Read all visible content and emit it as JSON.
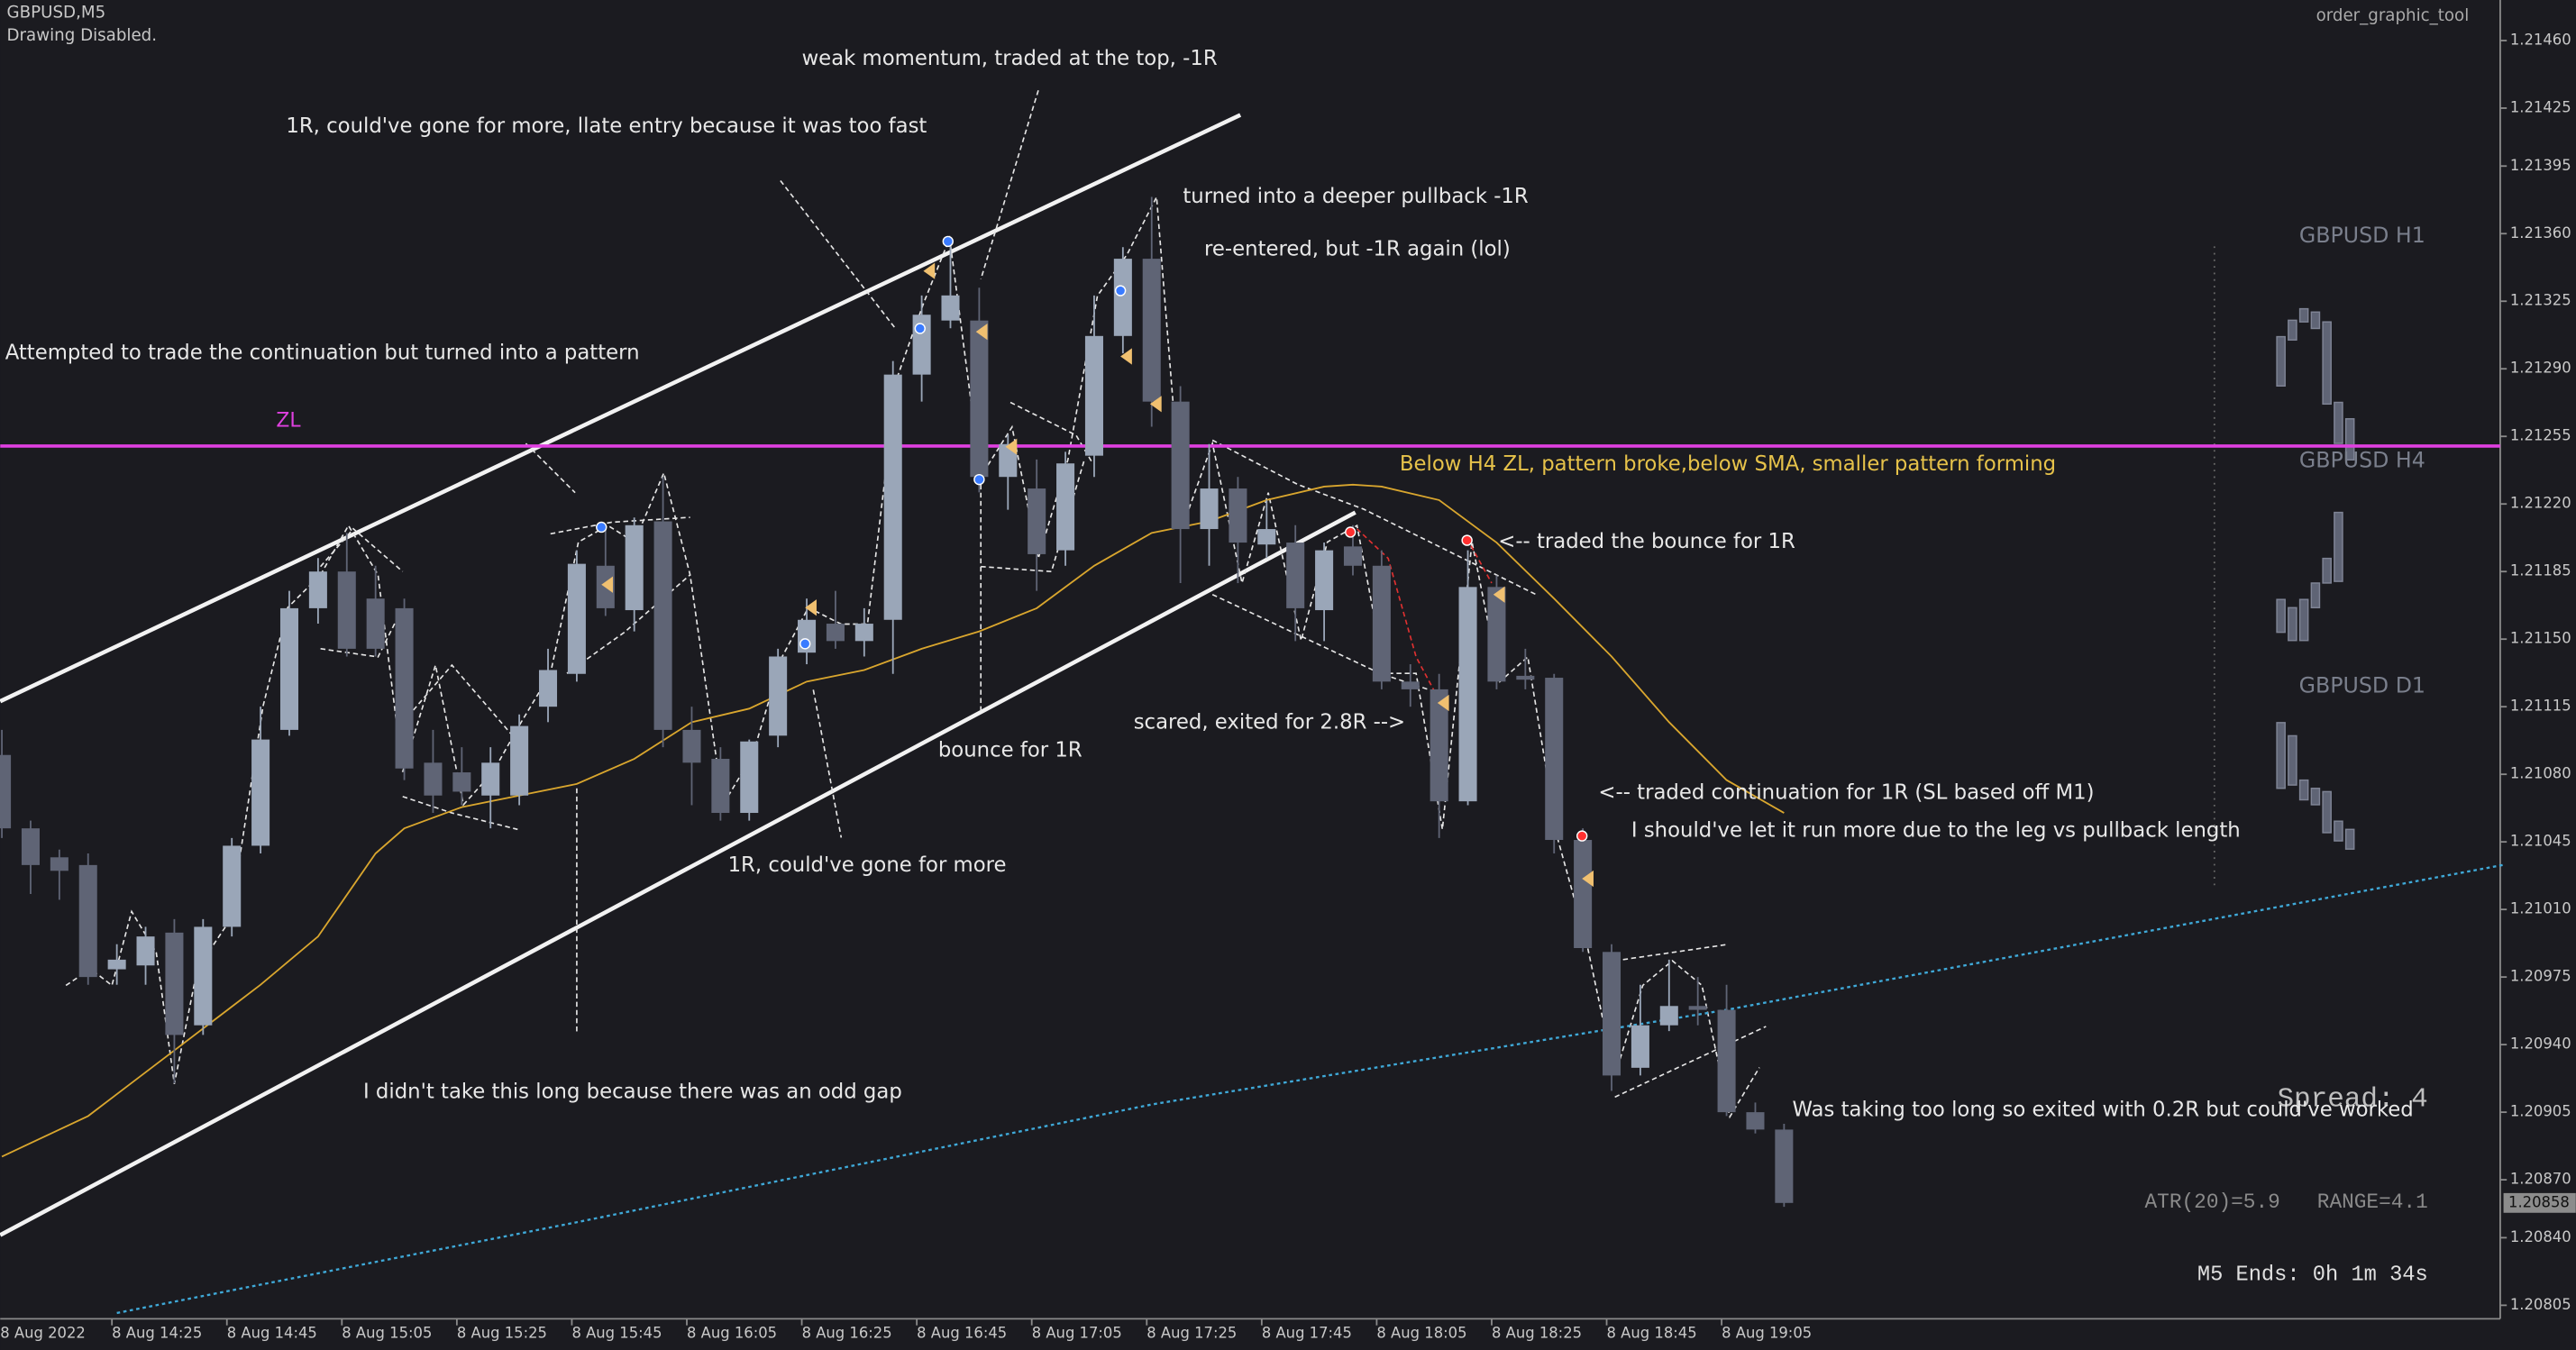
{
  "chart_data": {
    "type": "candlestick",
    "symbol": "GBPUSD,M5",
    "status": "Drawing Disabled.",
    "indicator": "order_graphic_tool",
    "categories": [
      "8 Aug 2022",
      null,
      null,
      null,
      "8 Aug 14:25",
      null,
      null,
      null,
      "8 Aug 14:45",
      null,
      null,
      null,
      "8 Aug 15:05",
      null,
      null,
      null,
      "8 Aug 15:25",
      null,
      null,
      null,
      "8 Aug 15:45",
      null,
      null,
      null,
      "8 Aug 16:05",
      null,
      null,
      null,
      "8 Aug 16:25",
      null,
      null,
      null,
      "8 Aug 16:45",
      null,
      null,
      null,
      "8 Aug 17:05",
      null,
      null,
      null,
      "8 Aug 17:25",
      null,
      null,
      null,
      "8 Aug 17:45",
      null,
      null,
      null,
      "8 Aug 18:05",
      null,
      null,
      null,
      "8 Aug 18:25",
      null,
      null,
      null,
      "8 Aug 18:45",
      null,
      null,
      null,
      "8 Aug 19:05",
      null,
      null
    ],
    "open": [
      1.2109,
      1.21052,
      1.21037,
      1.21033,
      1.20979,
      1.20981,
      1.20998,
      1.2095,
      1.21001,
      1.21043,
      1.21103,
      1.21166,
      1.21185,
      1.21171,
      1.21166,
      1.21086,
      1.21081,
      1.21069,
      1.21069,
      1.21115,
      1.21132,
      1.21188,
      1.21165,
      1.21211,
      1.21103,
      1.21088,
      1.2106,
      1.211,
      1.21143,
      1.21158,
      1.21149,
      1.2116,
      1.21287,
      1.21315,
      1.21315,
      1.21234,
      1.21228,
      1.21196,
      1.21245,
      1.21307,
      1.21347,
      1.21273,
      1.21207,
      1.21228,
      1.21199,
      1.212,
      1.21165,
      1.21198,
      1.21188,
      1.21128,
      1.21124,
      1.21066,
      1.21177,
      1.21131,
      1.2113,
      1.21046,
      1.20988,
      1.20928,
      1.2095,
      1.2096,
      1.20958,
      1.20905,
      1.20896
    ],
    "high": [
      1.21103,
      1.21056,
      1.21041,
      1.21039,
      1.20992,
      1.21001,
      1.21005,
      1.21005,
      1.21047,
      1.21115,
      1.21175,
      1.21192,
      1.21205,
      1.21188,
      1.21171,
      1.21103,
      1.21094,
      1.21094,
      1.21111,
      1.21145,
      1.21196,
      1.21209,
      1.21213,
      1.21234,
      1.21115,
      1.21094,
      1.21098,
      1.21145,
      1.21171,
      1.21175,
      1.21166,
      1.21294,
      1.21328,
      1.21358,
      1.21332,
      1.21256,
      1.21243,
      1.21247,
      1.21328,
      1.21353,
      1.21379,
      1.21281,
      1.21251,
      1.21234,
      1.21222,
      1.21209,
      1.212,
      1.21209,
      1.21196,
      1.21137,
      1.21132,
      1.21196,
      1.21183,
      1.21145,
      1.21132,
      1.21052,
      1.20992,
      1.20971,
      1.20984,
      1.20975,
      1.20971,
      1.2091,
      1.20899
    ],
    "low": [
      1.21047,
      1.21018,
      1.21015,
      1.20971,
      1.20971,
      1.20971,
      1.2092,
      1.20945,
      1.20996,
      1.21039,
      1.211,
      1.21158,
      1.21141,
      1.21141,
      1.21077,
      1.2106,
      1.21064,
      1.21052,
      1.21064,
      1.21107,
      1.21128,
      1.21162,
      1.21154,
      1.21094,
      1.21064,
      1.21056,
      1.21056,
      1.21094,
      1.21137,
      1.21145,
      1.21141,
      1.21132,
      1.21273,
      1.21311,
      1.21226,
      1.21217,
      1.21175,
      1.21188,
      1.21234,
      1.21298,
      1.2126,
      1.21179,
      1.21188,
      1.21179,
      1.21192,
      1.21149,
      1.21149,
      1.21183,
      1.21124,
      1.21115,
      1.21047,
      1.21064,
      1.21124,
      1.21124,
      1.21039,
      1.20988,
      1.20916,
      1.20924,
      1.20947,
      1.2095,
      1.20903,
      1.20894,
      1.20856
    ],
    "close": [
      1.21052,
      1.21033,
      1.2103,
      1.20975,
      1.20984,
      1.20996,
      1.20945,
      1.21001,
      1.21043,
      1.21098,
      1.21166,
      1.21185,
      1.21145,
      1.21145,
      1.21083,
      1.21069,
      1.21071,
      1.21086,
      1.21105,
      1.21134,
      1.21189,
      1.21166,
      1.21209,
      1.21103,
      1.21086,
      1.2106,
      1.21097,
      1.21141,
      1.2116,
      1.21149,
      1.21158,
      1.21287,
      1.21318,
      1.21328,
      1.21234,
      1.21251,
      1.21194,
      1.21241,
      1.21307,
      1.21347,
      1.21273,
      1.21207,
      1.21228,
      1.212,
      1.21207,
      1.21166,
      1.21196,
      1.21188,
      1.21128,
      1.21124,
      1.21066,
      1.21177,
      1.21128,
      1.21129,
      1.21046,
      1.2099,
      1.20924,
      1.2095,
      1.2096,
      1.20958,
      1.20905,
      1.20896,
      1.20858
    ],
    "up_color": "#9aa6b8",
    "down_color": "#5f6475",
    "sma": {
      "color": "#d9a62e",
      "x": [
        0,
        3,
        6,
        9,
        11,
        13,
        14,
        16,
        18,
        20,
        22,
        24,
        26,
        28,
        30,
        32,
        34,
        36,
        38,
        40,
        42,
        44,
        46,
        47,
        48,
        50,
        52,
        54,
        56,
        58,
        60,
        62
      ],
      "values": [
        1.20882,
        1.20903,
        1.20937,
        1.20971,
        1.20996,
        1.21039,
        1.21052,
        1.21063,
        1.21069,
        1.21075,
        1.21088,
        1.21107,
        1.21114,
        1.21128,
        1.21134,
        1.21145,
        1.21154,
        1.21166,
        1.21188,
        1.21205,
        1.21211,
        1.21222,
        1.21229,
        1.2123,
        1.21229,
        1.21222,
        1.212,
        1.21171,
        1.21141,
        1.21107,
        1.21077,
        1.2106
      ]
    },
    "ma": {
      "color": "#3fa9d8",
      "x": [
        4,
        20,
        40,
        60,
        87
      ],
      "values": [
        1.20801,
        1.20848,
        1.20909,
        1.20958,
        1.21033
      ]
    },
    "zone": {
      "value": 1.2125,
      "label": "ZL",
      "color": "#e040e0"
    },
    "last_price": 1.20858,
    "ylim": [
      1.20798,
      1.21481
    ],
    "yticks": [
      {
        "value": 1.2146,
        "label": "1.21460"
      },
      1.21425,
      1.21395,
      {
        "value": 1.2136,
        "label": "1.21360"
      },
      1.21325,
      {
        "value": 1.2129,
        "label": "1.21290"
      },
      1.21255,
      {
        "value": 1.2122,
        "label": "1.21220"
      },
      1.21185,
      {
        "value": 1.2115,
        "label": "1.21150"
      },
      1.21115,
      {
        "value": 1.2108,
        "label": "1.21080"
      },
      1.21045,
      {
        "value": 1.2101,
        "label": "1.21010"
      },
      1.20975,
      {
        "value": 1.2094,
        "label": "1.20940"
      },
      1.20905,
      {
        "value": 1.2087,
        "label": "1.20870"
      },
      {
        "value": 1.2084,
        "label": "1.20840"
      },
      1.20805
    ],
    "annotations": [
      {
        "text": "weak momentum, traded at the top, -1R",
        "color": "#e8e8e8"
      },
      {
        "text": "1R, could've gone for more, llate entry because it was too fast",
        "color": "#e8e8e8"
      },
      {
        "text": "turned into a deeper pullback -1R",
        "color": "#e8e8e8"
      },
      {
        "text": "re-entered, but -1R again (lol)",
        "color": "#e8e8e8"
      },
      {
        "text": "Attempted to trade the continuation but turned into a pattern",
        "color": "#e8e8e8"
      },
      {
        "text": "Below H4 ZL, pattern broke,below SMA, smaller pattern forming",
        "color": "#e6c24a"
      },
      {
        "text": "<-- traded the bounce for 1R",
        "color": "#e8e8e8"
      },
      {
        "text": "scared, exited for 2.8R -->",
        "color": "#e8e8e8"
      },
      {
        "text": "bounce for 1R",
        "color": "#e8e8e8"
      },
      {
        "text": "<-- traded continuation for 1R (SL based off M1)",
        "color": "#e8e8e8"
      },
      {
        "text": "I should've let it run more due to the leg vs pullback length",
        "color": "#e8e8e8"
      },
      {
        "text": "1R, could've gone for more",
        "color": "#e8e8e8"
      },
      {
        "text": "I didn't take this long because there was an odd gap",
        "color": "#e8e8e8"
      },
      {
        "text": "Was taking too long so exited with 0.2R but could've worked",
        "color": "#e8e8e8"
      }
    ],
    "panels": [
      "GBPUSD H1",
      "GBPUSD H4",
      "GBPUSD D1"
    ],
    "spread": "Spread: 4",
    "atr": "ATR(20)=5.9   RANGE=4.1",
    "timer": "M5 Ends: 0h 1m 34s"
  }
}
